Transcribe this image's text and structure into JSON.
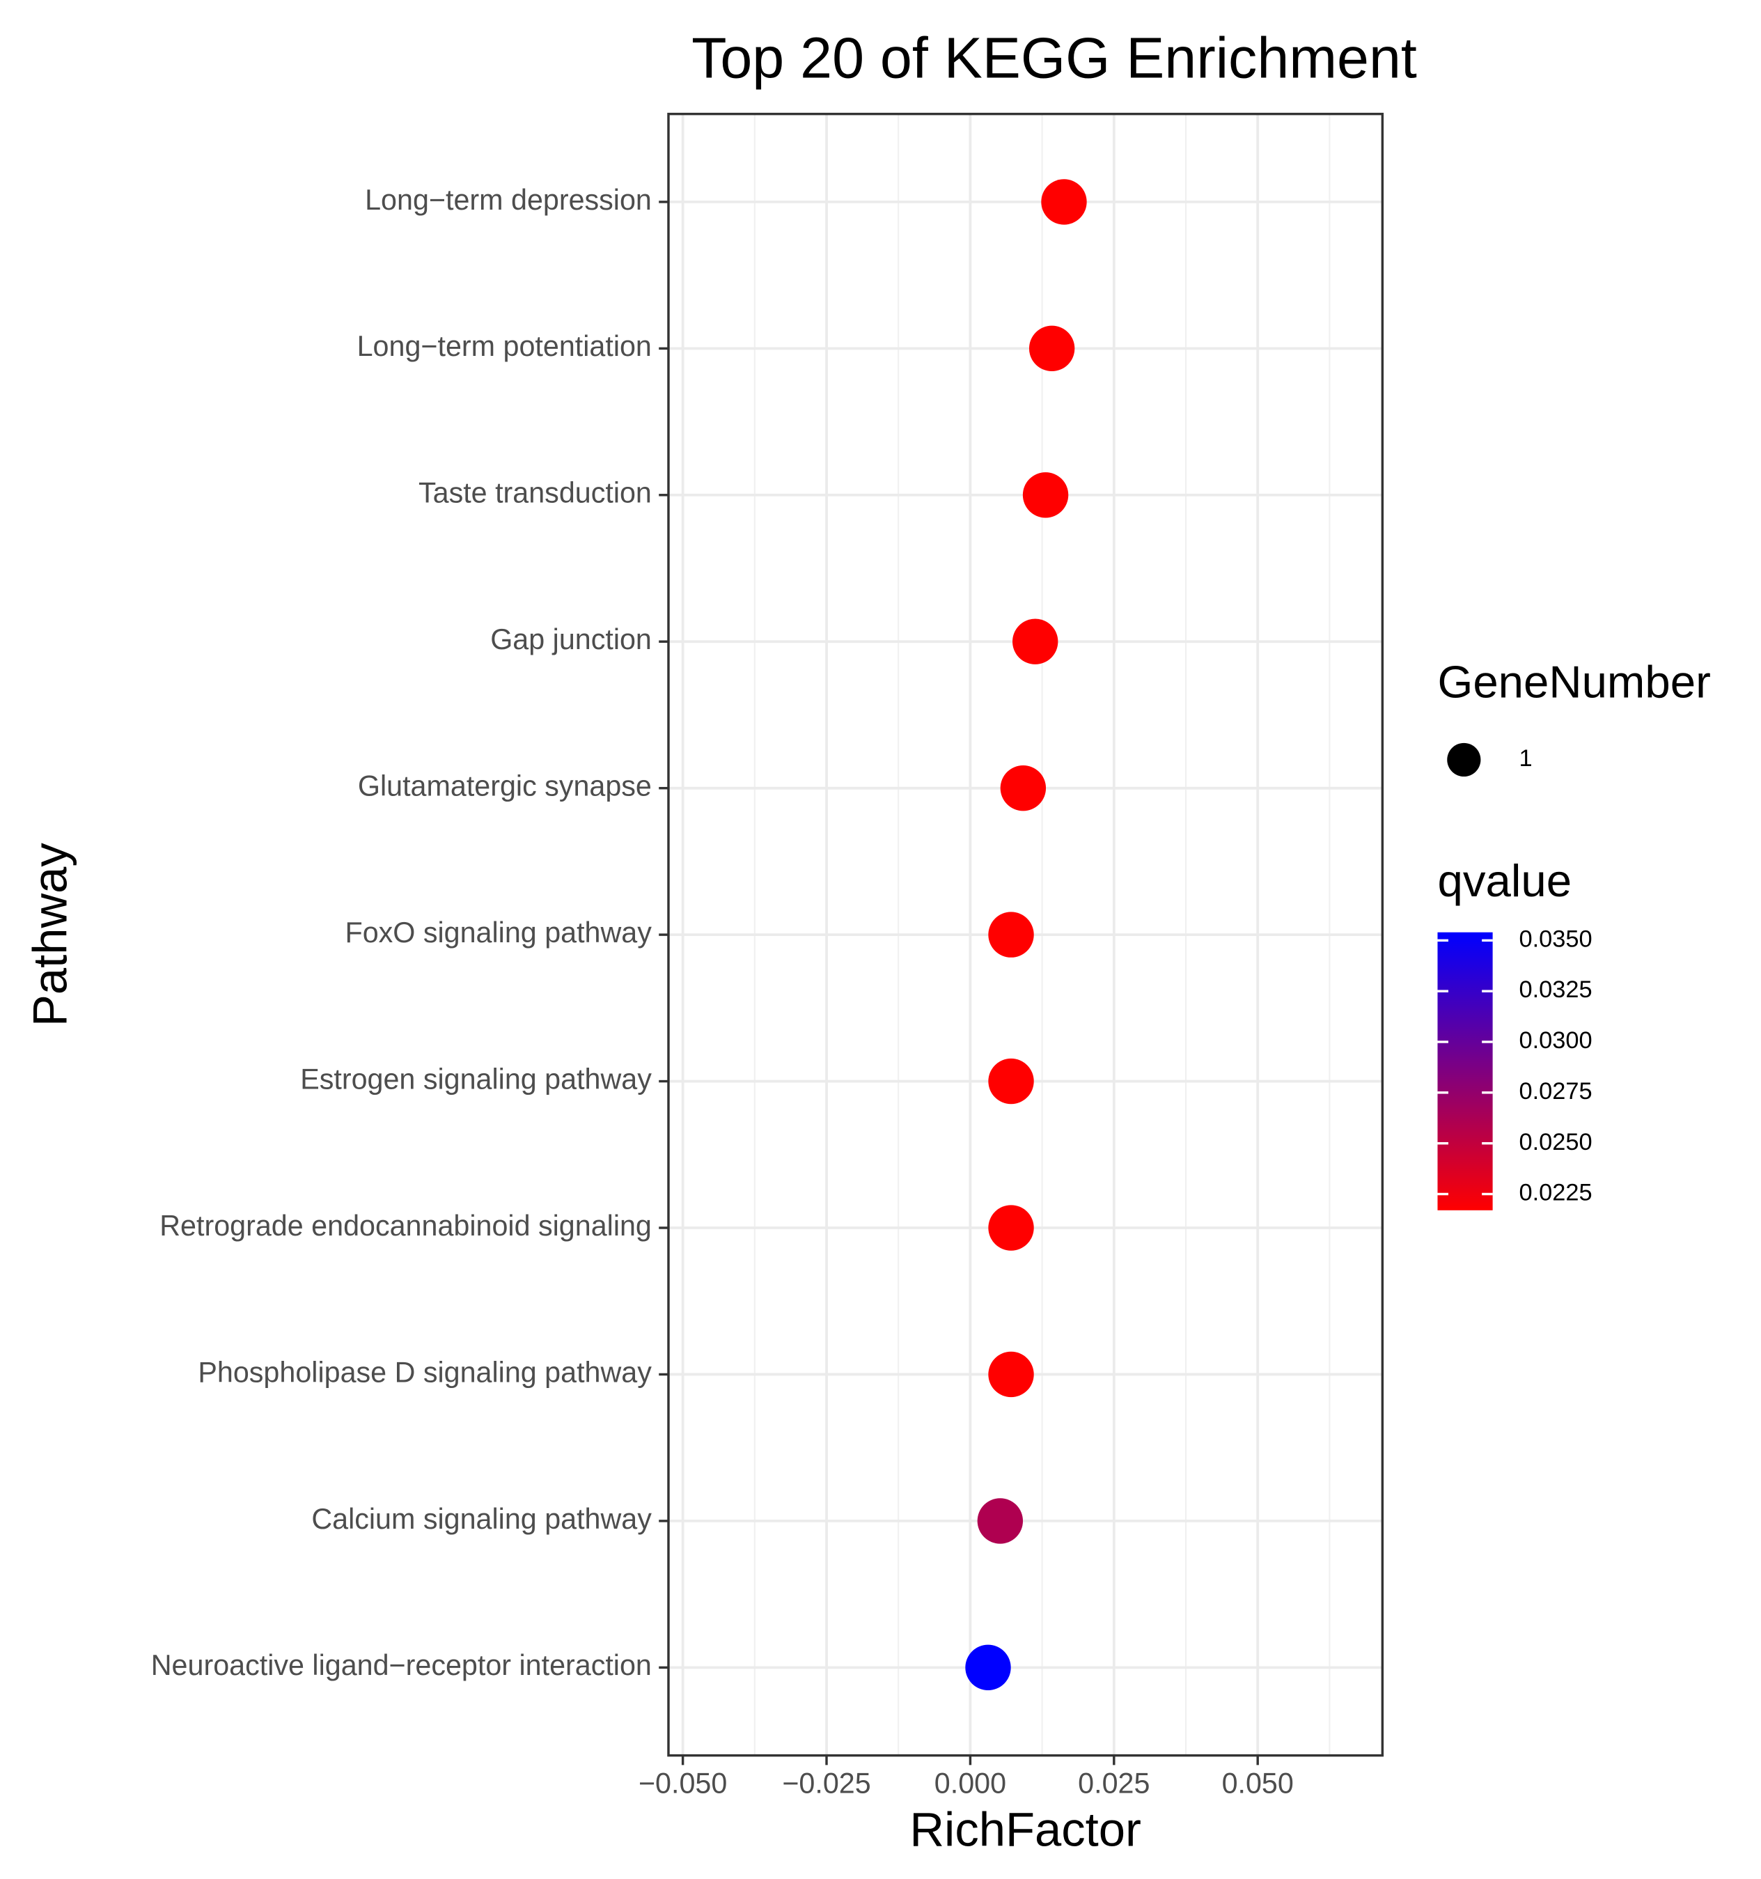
{
  "chart_data": {
    "type": "scatter",
    "title": "Top 20 of KEGG Enrichment",
    "x_label": "RichFactor",
    "y_label": "Pathway",
    "categories": [
      "Neuroactive ligand−receptor interaction",
      "Calcium signaling pathway",
      "Phospholipase D signaling pathway",
      "Retrograde endocannabinoid signaling",
      "Estrogen signaling pathway",
      "FoxO signaling pathway",
      "Glutamatergic synapse",
      "Gap junction",
      "Taste transduction",
      "Long−term potentiation",
      "Long−term depression"
    ],
    "values": [
      0.0031,
      0.0052,
      0.0071,
      0.0071,
      0.0071,
      0.0071,
      0.0092,
      0.0113,
      0.0131,
      0.0142,
      0.0163
    ],
    "qvalues": [
      0.0354,
      0.026,
      0.0217,
      0.0217,
      0.0217,
      0.0217,
      0.0217,
      0.0217,
      0.0217,
      0.0217,
      0.0217
    ],
    "sizes": [
      1,
      1,
      1,
      1,
      1,
      1,
      1,
      1,
      1,
      1,
      1
    ],
    "xlim": [
      -0.0525,
      0.0717
    ],
    "xticks": [
      {
        "value": -0.05,
        "label": "−0.050"
      },
      {
        "value": -0.025,
        "label": "−0.025"
      },
      {
        "value": 0,
        "label": "0.000"
      },
      0.025,
      {
        "value": 0.05,
        "label": "0.050"
      }
    ],
    "xminor": [
      -0.0375,
      -0.0125,
      0.0125,
      0.0375,
      0.0625
    ],
    "grid": true,
    "size_legend": {
      "title": "GeneNumber",
      "values": [
        1
      ]
    },
    "color_legend": {
      "title": "qvalue",
      "lim": [
        0.0217,
        0.0354
      ],
      "ticks": [
        {
          "value": 0.035,
          "label": "0.0350"
        },
        {
          "value": 0.0325,
          "label": "0.0325"
        },
        {
          "value": 0.03,
          "label": "0.0300"
        },
        {
          "value": 0.0275,
          "label": "0.0275"
        },
        {
          "value": 0.025,
          "label": "0.0250"
        },
        {
          "value": 0.0225,
          "label": "0.0225"
        }
      ],
      "low_color": "#ff0000",
      "high_color": "#0000ff"
    }
  }
}
